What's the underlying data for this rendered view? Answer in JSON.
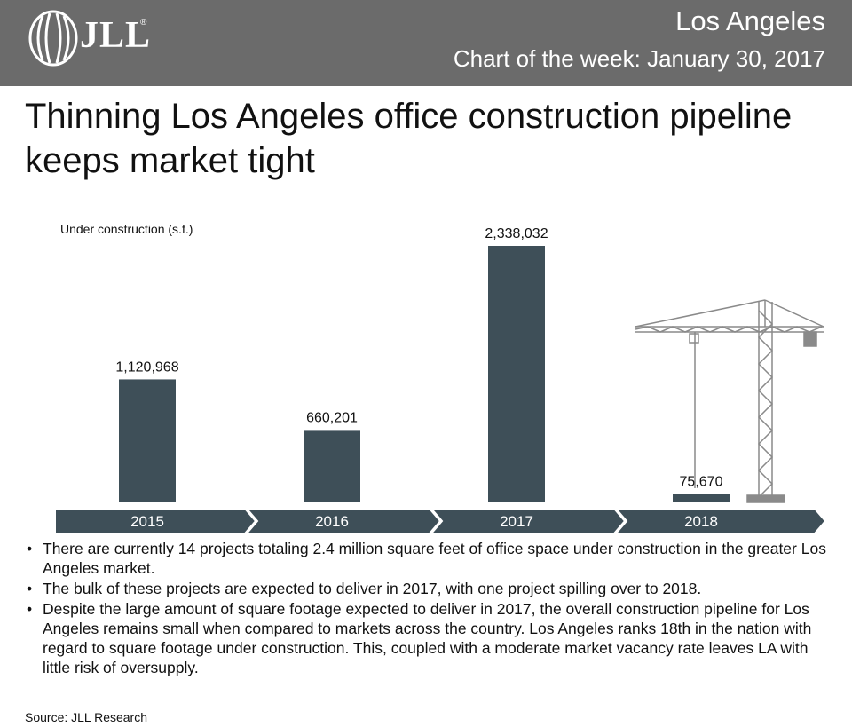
{
  "header": {
    "logo_text": "JLL",
    "city": "Los Angeles",
    "subtitle": "Chart of the week: January 30, 2017"
  },
  "headline": "Thinning Los Angeles office construction pipeline keeps market tight",
  "chart_data": {
    "type": "bar",
    "title": "",
    "ylabel": "Under construction (s.f.)",
    "xlabel": "",
    "categories": [
      "2015",
      "2016",
      "2017",
      "2018"
    ],
    "values": [
      1120968,
      660201,
      2338032,
      75670
    ],
    "value_labels": [
      "1,120,968",
      "660,201",
      "2,338,032",
      "75,670"
    ],
    "ylim": [
      0,
      2338032
    ],
    "grid": false,
    "bar_color": "#3e4f58",
    "axis_band_color": "#3e4f58"
  },
  "colors": {
    "header_band": "#6b6b6b",
    "bar": "#3e4f58",
    "crane": "#8a8a8a"
  },
  "illustration": {
    "icon": "tower-crane-icon"
  },
  "bullets": [
    "There are currently 14 projects totaling 2.4 million square feet of office space under construction in the greater Los Angeles market.",
    "The bulk of these projects are expected to deliver in 2017, with one project spilling over to 2018.",
    "Despite the large amount of square footage expected to deliver in 2017, the overall construction pipeline for Los Angeles remains small when compared to markets across the country. Los Angeles ranks 18th in the nation with regard to square footage under construction. This, coupled with a moderate market vacancy rate leaves LA with little risk of oversupply."
  ],
  "source": "Source: JLL Research"
}
